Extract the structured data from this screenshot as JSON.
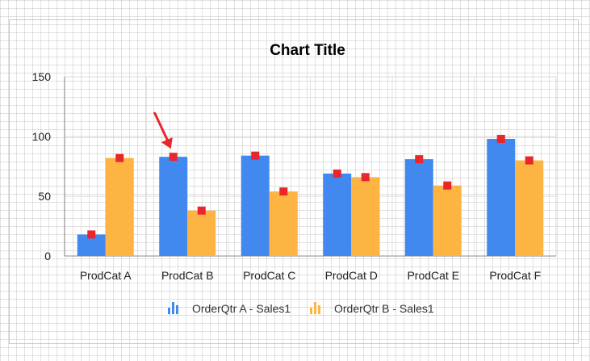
{
  "chart_data": {
    "type": "bar",
    "title": "Chart Title",
    "categories": [
      "ProdCat A",
      "ProdCat B",
      "ProdCat C",
      "ProdCat D",
      "ProdCat E",
      "ProdCat F"
    ],
    "series": [
      {
        "name": "OrderQtr A - Sales1",
        "values": [
          18,
          83,
          84,
          69,
          81,
          98
        ],
        "color": "#4189ef",
        "marker_color": "#e8262b"
      },
      {
        "name": "OrderQtr B - Sales1",
        "values": [
          82,
          38,
          54,
          66,
          59,
          80
        ],
        "color": "#fdb443",
        "marker_color": "#e8262b"
      }
    ],
    "ylim": [
      0,
      150
    ],
    "yticks": [
      0,
      50,
      100,
      150
    ],
    "grid": true,
    "legend_position": "bottom",
    "annotation": {
      "type": "arrow",
      "color": "#e8262b",
      "target_category": "ProdCat B",
      "target_series": "OrderQtr A - Sales1"
    }
  }
}
